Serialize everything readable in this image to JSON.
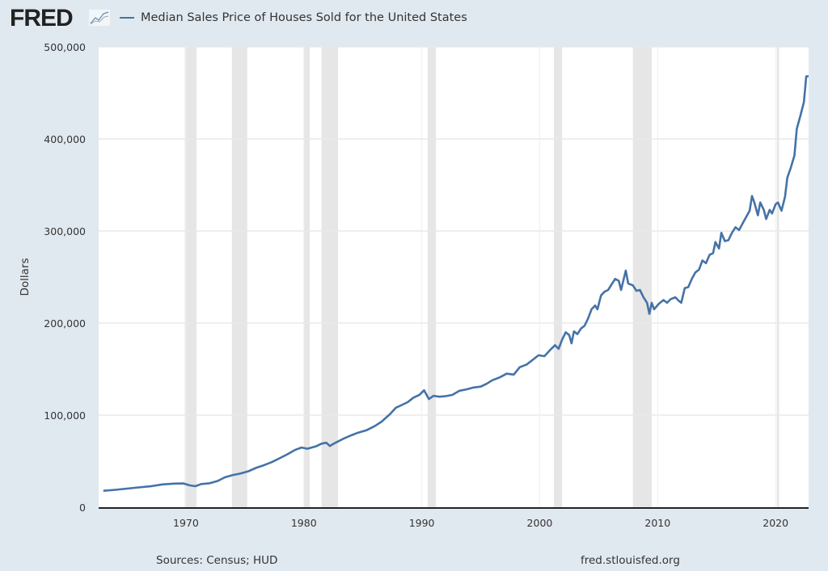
{
  "header": {
    "logo_text": "FRED",
    "logo_icon": "line-chart-icon"
  },
  "chart_data": {
    "type": "line",
    "title": "",
    "ylabel": "Dollars",
    "xlabel": "",
    "xlim": [
      1962.6,
      2022.8
    ],
    "ylim": [
      0,
      500000
    ],
    "x_ticks": [
      1970,
      1980,
      1990,
      2000,
      2010,
      2020
    ],
    "x_tick_labels": [
      "1970",
      "1980",
      "1990",
      "2000",
      "2010",
      "2020"
    ],
    "y_ticks": [
      0,
      100000,
      200000,
      300000,
      400000,
      500000
    ],
    "y_tick_labels": [
      "0",
      "100,000",
      "200,000",
      "300,000",
      "400,000",
      "500,000"
    ],
    "grid": true,
    "legend_position": "top-left",
    "series": [
      {
        "name": "Median Sales Price of Houses Sold for the United States",
        "color": "#4572a7",
        "points": [
          [
            1963.0,
            17800
          ],
          [
            1964.0,
            18900
          ],
          [
            1965.0,
            20200
          ],
          [
            1966.0,
            21500
          ],
          [
            1967.0,
            22700
          ],
          [
            1968.0,
            24700
          ],
          [
            1969.0,
            25600
          ],
          [
            1969.8,
            25800
          ],
          [
            1970.3,
            23800
          ],
          [
            1970.8,
            22800
          ],
          [
            1971.3,
            25200
          ],
          [
            1972.0,
            26000
          ],
          [
            1972.7,
            28500
          ],
          [
            1973.3,
            32500
          ],
          [
            1974.0,
            35000
          ],
          [
            1974.6,
            36500
          ],
          [
            1975.3,
            39000
          ],
          [
            1976.0,
            43000
          ],
          [
            1976.6,
            45500
          ],
          [
            1977.3,
            49000
          ],
          [
            1978.0,
            53500
          ],
          [
            1978.6,
            57500
          ],
          [
            1979.3,
            62500
          ],
          [
            1979.8,
            64800
          ],
          [
            1980.3,
            63500
          ],
          [
            1981.0,
            66000
          ],
          [
            1981.5,
            69000
          ],
          [
            1981.9,
            70000
          ],
          [
            1982.2,
            66500
          ],
          [
            1982.6,
            69500
          ],
          [
            1983.3,
            74000
          ],
          [
            1984.0,
            78000
          ],
          [
            1984.6,
            81000
          ],
          [
            1985.3,
            83500
          ],
          [
            1986.0,
            88000
          ],
          [
            1986.6,
            93000
          ],
          [
            1987.3,
            101000
          ],
          [
            1987.8,
            108000
          ],
          [
            1988.3,
            111000
          ],
          [
            1988.8,
            114000
          ],
          [
            1989.3,
            119000
          ],
          [
            1989.8,
            122000
          ],
          [
            1990.2,
            127000
          ],
          [
            1990.6,
            117500
          ],
          [
            1991.0,
            121000
          ],
          [
            1991.5,
            120000
          ],
          [
            1992.0,
            120500
          ],
          [
            1992.6,
            122000
          ],
          [
            1993.2,
            126500
          ],
          [
            1993.8,
            128000
          ],
          [
            1994.4,
            130000
          ],
          [
            1995.0,
            131000
          ],
          [
            1995.5,
            134000
          ],
          [
            1996.0,
            138000
          ],
          [
            1996.6,
            141000
          ],
          [
            1997.2,
            145000
          ],
          [
            1997.8,
            144000
          ],
          [
            1998.3,
            152000
          ],
          [
            1998.9,
            155000
          ],
          [
            1999.4,
            160000
          ],
          [
            1999.9,
            165000
          ],
          [
            2000.4,
            164000
          ],
          [
            2000.9,
            171000
          ],
          [
            2001.3,
            176000
          ],
          [
            2001.6,
            172000
          ],
          [
            2001.9,
            182000
          ],
          [
            2002.2,
            190000
          ],
          [
            2002.5,
            187000
          ],
          [
            2002.7,
            178000
          ],
          [
            2002.9,
            191000
          ],
          [
            2003.2,
            188000
          ],
          [
            2003.5,
            194000
          ],
          [
            2003.8,
            197000
          ],
          [
            2004.1,
            205000
          ],
          [
            2004.4,
            215000
          ],
          [
            2004.7,
            219000
          ],
          [
            2004.9,
            215000
          ],
          [
            2005.2,
            230000
          ],
          [
            2005.5,
            234000
          ],
          [
            2005.8,
            236000
          ],
          [
            2006.1,
            242000
          ],
          [
            2006.4,
            248000
          ],
          [
            2006.7,
            246000
          ],
          [
            2006.9,
            236000
          ],
          [
            2007.3,
            257000
          ],
          [
            2007.5,
            243000
          ],
          [
            2007.9,
            241000
          ],
          [
            2008.2,
            235000
          ],
          [
            2008.5,
            236000
          ],
          [
            2008.8,
            228000
          ],
          [
            2009.1,
            222000
          ],
          [
            2009.3,
            210000
          ],
          [
            2009.5,
            222000
          ],
          [
            2009.7,
            215000
          ],
          [
            2010.1,
            221000
          ],
          [
            2010.5,
            225000
          ],
          [
            2010.8,
            222000
          ],
          [
            2011.1,
            226000
          ],
          [
            2011.5,
            228000
          ],
          [
            2011.8,
            224000
          ],
          [
            2012.0,
            222000
          ],
          [
            2012.3,
            238000
          ],
          [
            2012.6,
            239000
          ],
          [
            2012.9,
            248000
          ],
          [
            2013.2,
            255000
          ],
          [
            2013.5,
            258000
          ],
          [
            2013.8,
            268000
          ],
          [
            2014.1,
            265000
          ],
          [
            2014.4,
            274000
          ],
          [
            2014.7,
            276000
          ],
          [
            2014.9,
            288000
          ],
          [
            2015.2,
            281000
          ],
          [
            2015.4,
            298000
          ],
          [
            2015.7,
            289000
          ],
          [
            2016.0,
            290000
          ],
          [
            2016.3,
            298000
          ],
          [
            2016.6,
            304000
          ],
          [
            2016.9,
            301000
          ],
          [
            2017.2,
            308000
          ],
          [
            2017.5,
            315000
          ],
          [
            2017.8,
            322000
          ],
          [
            2018.0,
            338000
          ],
          [
            2018.2,
            331000
          ],
          [
            2018.5,
            317000
          ],
          [
            2018.7,
            331000
          ],
          [
            2019.0,
            323000
          ],
          [
            2019.2,
            313000
          ],
          [
            2019.5,
            323000
          ],
          [
            2019.7,
            319000
          ],
          [
            2020.0,
            329000
          ],
          [
            2020.2,
            331000
          ],
          [
            2020.5,
            322000
          ],
          [
            2020.8,
            337000
          ],
          [
            2021.0,
            358000
          ],
          [
            2021.3,
            369000
          ],
          [
            2021.6,
            382000
          ],
          [
            2021.8,
            411000
          ],
          [
            2022.1,
            425000
          ],
          [
            2022.4,
            440000
          ],
          [
            2022.6,
            468000
          ],
          [
            2022.8,
            468000
          ]
        ]
      }
    ],
    "recessions": [
      [
        1969.9,
        1970.9
      ],
      [
        1973.9,
        1975.2
      ],
      [
        1980.0,
        1980.5
      ],
      [
        1981.5,
        1982.9
      ],
      [
        1990.5,
        1991.2
      ],
      [
        2001.2,
        2001.9
      ],
      [
        2007.9,
        2009.5
      ],
      [
        2020.1,
        2020.3
      ]
    ]
  },
  "footer": {
    "sources": "Sources: Census; HUD",
    "site": "fred.stlouisfed.org"
  }
}
